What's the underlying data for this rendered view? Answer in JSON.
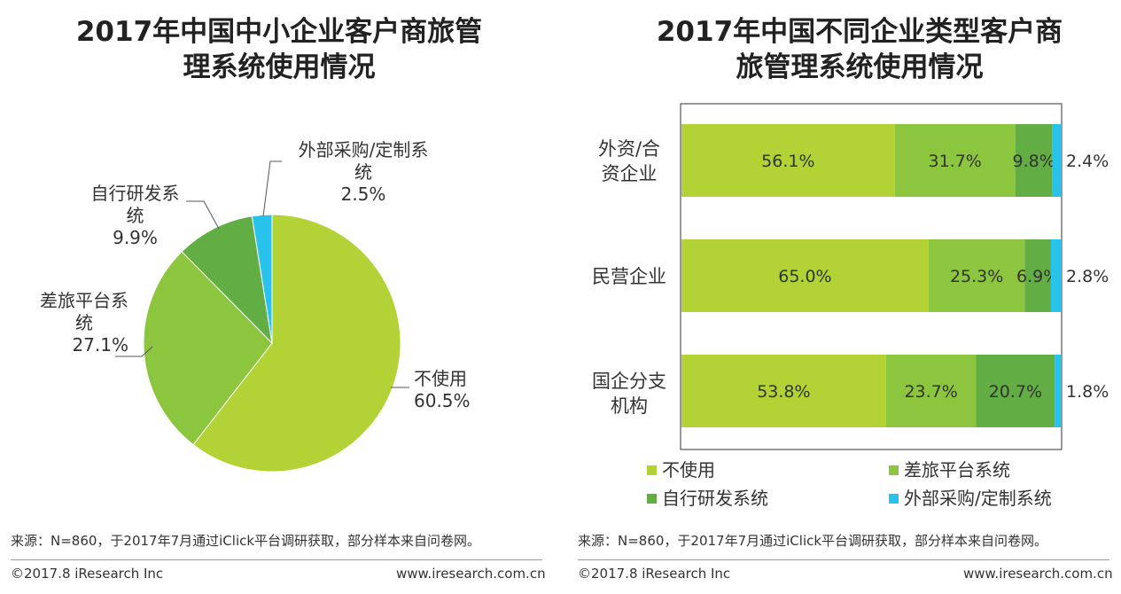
{
  "chart_data": [
    {
      "type": "pie",
      "title": "2017年中国中小企业客户商旅管理系统使用情况",
      "title_lines": [
        "2017年中国中小企业客户商旅管",
        "理系统使用情况"
      ],
      "slices": [
        {
          "label": "不使用",
          "label_lines": [
            "不使用"
          ],
          "value": 60.5,
          "value_text": "60.5%",
          "color": "#b2d235"
        },
        {
          "label": "差旅平台系统",
          "label_lines": [
            "差旅平台系",
            "统"
          ],
          "value": 27.1,
          "value_text": "27.1%",
          "color": "#8cc63e"
        },
        {
          "label": "自行研发系统",
          "label_lines": [
            "自行研发系",
            "统"
          ],
          "value": 9.9,
          "value_text": "9.9%",
          "color": "#63ad45"
        },
        {
          "label": "外部采购/定制系统",
          "label_lines": [
            "外部采购/定制系",
            "统"
          ],
          "value": 2.5,
          "value_text": "2.5%",
          "color": "#27c3ea"
        }
      ]
    },
    {
      "type": "bar",
      "orientation": "horizontal",
      "stacked": true,
      "title": "2017年中国不同企业类型客户商旅管理系统使用情况",
      "title_lines": [
        "2017年中国不同企业类型客户商",
        "旅管理系统使用情况"
      ],
      "categories": [
        {
          "name": "外资/合资企业",
          "lines": [
            "外资/合",
            "资企业"
          ]
        },
        {
          "name": "民营企业",
          "lines": [
            "民营企业"
          ]
        },
        {
          "name": "国企分支机构",
          "lines": [
            "国企分支",
            "机构"
          ]
        }
      ],
      "series": [
        {
          "name": "不使用",
          "color": "#b2d235",
          "values": [
            56.1,
            65.0,
            53.8
          ],
          "labels": [
            "56.1%",
            "65.0%",
            "53.8%"
          ]
        },
        {
          "name": "差旅平台系统",
          "color": "#8cc63e",
          "values": [
            31.7,
            25.3,
            23.7
          ],
          "labels": [
            "31.7%",
            "25.3%",
            "23.7%"
          ]
        },
        {
          "name": "自行研发系统",
          "color": "#63ad45",
          "values": [
            9.8,
            6.9,
            20.7
          ],
          "labels": [
            "9.8%",
            "6.9%",
            "20.7%"
          ]
        },
        {
          "name": "外部采购/定制系统",
          "color": "#27c3ea",
          "values": [
            2.4,
            2.8,
            1.8
          ],
          "labels": [
            "2.4%",
            "2.8%",
            "1.8%"
          ]
        }
      ],
      "xlim": [
        0,
        100
      ],
      "legend": [
        "不使用",
        "差旅平台系统",
        "自行研发系统",
        "外部采购/定制系统"
      ],
      "legend_position": "bottom"
    }
  ],
  "footer": {
    "source": "来源：N=860，于2017年7月通过iClick平台调研获取，部分样本来自问卷网。",
    "copyright": "©2017.8 iResearch Inc",
    "website": "www.iresearch.com.cn"
  }
}
